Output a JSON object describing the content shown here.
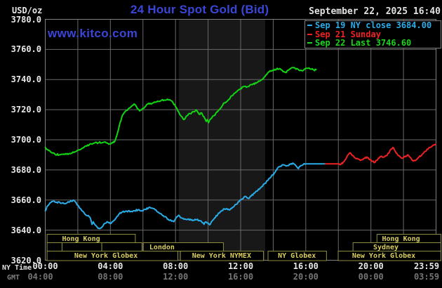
{
  "header": {
    "title": "24 Hour Spot Gold (Bid)",
    "datetime": "September 22, 2025 16:40",
    "watermark": "www.kitco.com",
    "unit_label": "USD/oz"
  },
  "legend": {
    "items": [
      {
        "label": "Sep 19 NY close 3684.00",
        "color": "#2aace8"
      },
      {
        "label": "Sep 21 Sunday",
        "color": "#ee2222"
      },
      {
        "label": "Sep 22 Last 3746.60",
        "color": "#1ed41e"
      }
    ]
  },
  "axes": {
    "y_ticks": [
      "3780.0",
      "3760.0",
      "3740.0",
      "3720.0",
      "3700.0",
      "3680.0",
      "3660.0",
      "3640.0",
      "3620.0"
    ],
    "tick_hours": [
      0,
      4,
      8,
      12,
      16,
      20,
      23.983
    ],
    "x_rows": [
      {
        "name": "NY Time",
        "ticks": [
          "00:00",
          "04:00",
          "08:00",
          "12:00",
          "16:00",
          "20:00",
          "23:59"
        ]
      },
      {
        "name": "GMT",
        "ticks": [
          "04:00",
          "08:00",
          "12:00",
          "16:00",
          "20:00",
          "00:00",
          "03:59"
        ]
      }
    ]
  },
  "sessions": {
    "rows": [
      {
        "boxes": [
          {
            "h1": 0.09,
            "h2": 5.51,
            "label": "Hong Kong",
            "cx_h": 2.2
          },
          {
            "h1": 20.35,
            "h2": 24.28,
            "label": "Hong Kong",
            "cx_h": 21.85
          }
        ]
      },
      {
        "boxes": [
          {
            "h1": 0.09,
            "h2": 1.01,
            "label": ""
          },
          {
            "h1": 1.01,
            "h2": 3.45,
            "label": ""
          },
          {
            "h1": 3.45,
            "h2": 5.92,
            "label": ""
          },
          {
            "h1": 6.0,
            "h2": 10.92,
            "label": "London",
            "cx_h": 7.17
          },
          {
            "h1": 18.88,
            "h2": 24.28,
            "label": "Sydney",
            "cx_h": 20.92
          }
        ]
      },
      {
        "boxes": [
          {
            "h1": 0.09,
            "h2": 8.12,
            "label": "New York Globex",
            "cx_h": 3.73
          },
          {
            "h1": 8.28,
            "h2": 13.38,
            "label": "New York NYMEX"
          },
          {
            "h1": 13.66,
            "h2": 17.25,
            "label": "NY Globex"
          },
          {
            "h1": 17.97,
            "h2": 24.28,
            "label": "New York Globex",
            "cx_h": 20.79
          }
        ]
      }
    ]
  },
  "colors": {
    "background": "#000000",
    "grid": "#696969",
    "border": "#7f7f7f",
    "band": "#181818",
    "session_border": "#8f8c42",
    "session_text": "#d8ce60",
    "axis_text": "#e8e8e8",
    "axis_text_dim": "#757575",
    "title_blue": "#3946d8",
    "date_text": "#e2e2e2"
  },
  "chart_data": {
    "type": "line",
    "title": "24 Hour Spot Gold (Bid)",
    "x_unit": "hours_ny_time",
    "xlim": [
      0,
      24
    ],
    "ylim": [
      3620,
      3780
    ],
    "y_gridstep": 20,
    "x_gridstep_hours": 2,
    "highlight_band_hours": [
      8.2,
      13.51
    ],
    "ny_close": 3684.0,
    "last": 3746.6,
    "series": [
      {
        "name": "Sep 19 NY close",
        "color": "#2aace8",
        "points": [
          [
            0,
            3652.8
          ],
          [
            0.1,
            3655.5
          ],
          [
            0.3,
            3658.2
          ],
          [
            0.45,
            3659
          ],
          [
            0.65,
            3658.5
          ],
          [
            0.9,
            3658.3
          ],
          [
            1.2,
            3657.6
          ],
          [
            1.45,
            3658.6
          ],
          [
            1.7,
            3659.8
          ],
          [
            1.85,
            3658.8
          ],
          [
            2,
            3656.5
          ],
          [
            2.2,
            3653.8
          ],
          [
            2.4,
            3651.3
          ],
          [
            2.6,
            3649.5
          ],
          [
            2.75,
            3648.5
          ],
          [
            2.87,
            3643.8
          ],
          [
            2.95,
            3645.5
          ],
          [
            3.1,
            3643.2
          ],
          [
            3.3,
            3641.2
          ],
          [
            3.45,
            3641.6
          ],
          [
            3.6,
            3644.1
          ],
          [
            3.8,
            3645.6
          ],
          [
            4,
            3644.3
          ],
          [
            4.2,
            3646.3
          ],
          [
            4.35,
            3648.1
          ],
          [
            4.55,
            3650.9
          ],
          [
            4.75,
            3652.2
          ],
          [
            5,
            3652.6
          ],
          [
            5.25,
            3652.4
          ],
          [
            5.5,
            3652.9
          ],
          [
            5.75,
            3653.7
          ],
          [
            5.95,
            3652.9
          ],
          [
            6.15,
            3653.8
          ],
          [
            6.35,
            3654.9
          ],
          [
            6.55,
            3654.6
          ],
          [
            6.75,
            3653.5
          ],
          [
            6.95,
            3651.9
          ],
          [
            7.15,
            3650.5
          ],
          [
            7.35,
            3648.9
          ],
          [
            7.55,
            3647.3
          ],
          [
            7.75,
            3646
          ],
          [
            7.9,
            3645.6
          ],
          [
            8.1,
            3648.9
          ],
          [
            8.2,
            3649.9
          ],
          [
            8.35,
            3648.1
          ],
          [
            8.5,
            3647.3
          ],
          [
            8.7,
            3646.9
          ],
          [
            8.9,
            3647.3
          ],
          [
            9.1,
            3646.6
          ],
          [
            9.3,
            3646.9
          ],
          [
            9.5,
            3646.2
          ],
          [
            9.65,
            3644.9
          ],
          [
            9.75,
            3643.9
          ],
          [
            9.85,
            3645.5
          ],
          [
            10,
            3644.7
          ],
          [
            10.1,
            3643.5
          ],
          [
            10.25,
            3646.1
          ],
          [
            10.4,
            3648.1
          ],
          [
            10.6,
            3650.5
          ],
          [
            10.8,
            3652.6
          ],
          [
            11,
            3654.1
          ],
          [
            11.15,
            3654.3
          ],
          [
            11.3,
            3653.4
          ],
          [
            11.5,
            3655.1
          ],
          [
            11.7,
            3657.1
          ],
          [
            11.9,
            3658.9
          ],
          [
            12.05,
            3660.4
          ],
          [
            12.2,
            3661.8
          ],
          [
            12.35,
            3662.1
          ],
          [
            12.5,
            3661
          ],
          [
            12.65,
            3662.7
          ],
          [
            12.85,
            3664.5
          ],
          [
            13.05,
            3666.3
          ],
          [
            13.25,
            3668.4
          ],
          [
            13.45,
            3670.7
          ],
          [
            13.65,
            3672.8
          ],
          [
            13.85,
            3675
          ],
          [
            14.05,
            3677.7
          ],
          [
            14.25,
            3680.9
          ],
          [
            14.45,
            3682.5
          ],
          [
            14.65,
            3683.3
          ],
          [
            14.85,
            3682.9
          ],
          [
            15.05,
            3683.7
          ],
          [
            15.2,
            3684.5
          ],
          [
            15.4,
            3682.7
          ],
          [
            15.55,
            3680.9
          ],
          [
            15.7,
            3682.9
          ],
          [
            15.85,
            3683.7
          ],
          [
            16,
            3684
          ],
          [
            17.2,
            3684
          ]
        ]
      },
      {
        "name": "Sep 21 Sunday",
        "color": "#ee2222",
        "points": [
          [
            17.2,
            3684
          ],
          [
            18.05,
            3684
          ],
          [
            18.15,
            3683.6
          ],
          [
            18.3,
            3685.2
          ],
          [
            18.5,
            3688.2
          ],
          [
            18.65,
            3690.6
          ],
          [
            18.73,
            3691.3
          ],
          [
            18.85,
            3689.6
          ],
          [
            19,
            3688.1
          ],
          [
            19.2,
            3687.3
          ],
          [
            19.4,
            3686.6
          ],
          [
            19.6,
            3687.7
          ],
          [
            19.75,
            3688.6
          ],
          [
            19.9,
            3686.9
          ],
          [
            20.05,
            3685.7
          ],
          [
            20.25,
            3685
          ],
          [
            20.45,
            3687.7
          ],
          [
            20.6,
            3688.9
          ],
          [
            20.8,
            3688.5
          ],
          [
            21,
            3689.8
          ],
          [
            21.2,
            3693.4
          ],
          [
            21.35,
            3694.9
          ],
          [
            21.5,
            3692.3
          ],
          [
            21.7,
            3689.4
          ],
          [
            21.9,
            3687.8
          ],
          [
            22.1,
            3688.7
          ],
          [
            22.3,
            3689.9
          ],
          [
            22.45,
            3688
          ],
          [
            22.6,
            3685.9
          ],
          [
            22.75,
            3686.4
          ],
          [
            22.95,
            3688.5
          ],
          [
            23.15,
            3690.4
          ],
          [
            23.35,
            3692.4
          ],
          [
            23.6,
            3694.8
          ],
          [
            23.8,
            3696.2
          ],
          [
            23.98,
            3697
          ]
        ]
      },
      {
        "name": "Sep 22",
        "color": "#12d412",
        "points": [
          [
            0,
            3695
          ],
          [
            0.15,
            3693.4
          ],
          [
            0.35,
            3691.7
          ],
          [
            0.6,
            3690.4
          ],
          [
            0.9,
            3690
          ],
          [
            1.2,
            3690.3
          ],
          [
            1.5,
            3690.9
          ],
          [
            1.8,
            3691.9
          ],
          [
            2.1,
            3693.4
          ],
          [
            2.4,
            3695.3
          ],
          [
            2.7,
            3696.7
          ],
          [
            3,
            3697.7
          ],
          [
            3.3,
            3698.2
          ],
          [
            3.6,
            3698.5
          ],
          [
            3.8,
            3697.9
          ],
          [
            4,
            3697.2
          ],
          [
            4.15,
            3698
          ],
          [
            4.28,
            3699.2
          ],
          [
            4.4,
            3703
          ],
          [
            4.55,
            3709.5
          ],
          [
            4.7,
            3715
          ],
          [
            4.85,
            3718
          ],
          [
            5,
            3719.6
          ],
          [
            5.15,
            3721
          ],
          [
            5.3,
            3722.3
          ],
          [
            5.45,
            3723.8
          ],
          [
            5.6,
            3722
          ],
          [
            5.8,
            3719.2
          ],
          [
            6,
            3720.7
          ],
          [
            6.2,
            3722.9
          ],
          [
            6.35,
            3724.3
          ],
          [
            6.5,
            3723.7
          ],
          [
            6.7,
            3725.1
          ],
          [
            6.9,
            3725.7
          ],
          [
            7.1,
            3726
          ],
          [
            7.3,
            3726.4
          ],
          [
            7.5,
            3727
          ],
          [
            7.7,
            3726.1
          ],
          [
            7.85,
            3724.6
          ],
          [
            8.05,
            3721.4
          ],
          [
            8.25,
            3717
          ],
          [
            8.45,
            3714.2
          ],
          [
            8.55,
            3713.6
          ],
          [
            8.7,
            3715.9
          ],
          [
            8.9,
            3717.4
          ],
          [
            9.1,
            3718.6
          ],
          [
            9.3,
            3719.6
          ],
          [
            9.45,
            3717
          ],
          [
            9.6,
            3717.9
          ],
          [
            9.8,
            3714.2
          ],
          [
            9.88,
            3712.2
          ],
          [
            9.95,
            3713.4
          ],
          [
            10.03,
            3711.4
          ],
          [
            10.15,
            3713.8
          ],
          [
            10.3,
            3715.8
          ],
          [
            10.42,
            3716.2
          ],
          [
            10.52,
            3718.2
          ],
          [
            10.65,
            3719.8
          ],
          [
            10.72,
            3720.2
          ],
          [
            10.85,
            3722.3
          ],
          [
            11,
            3724.6
          ],
          [
            11.1,
            3725
          ],
          [
            11.22,
            3726.2
          ],
          [
            11.32,
            3727
          ],
          [
            11.45,
            3729.2
          ],
          [
            11.55,
            3730
          ],
          [
            11.68,
            3731.4
          ],
          [
            11.8,
            3732.6
          ],
          [
            12,
            3734.1
          ],
          [
            12.2,
            3735.4
          ],
          [
            12.35,
            3734.9
          ],
          [
            12.55,
            3736.1
          ],
          [
            12.75,
            3736.9
          ],
          [
            12.95,
            3737.6
          ],
          [
            13.15,
            3738.9
          ],
          [
            13.4,
            3740.9
          ],
          [
            13.6,
            3743.4
          ],
          [
            13.75,
            3745.2
          ],
          [
            13.9,
            3745.9
          ],
          [
            14.05,
            3746.2
          ],
          [
            14.2,
            3746.9
          ],
          [
            14.4,
            3747.3
          ],
          [
            14.6,
            3745.3
          ],
          [
            14.75,
            3744.7
          ],
          [
            14.95,
            3746.4
          ],
          [
            15.15,
            3747.9
          ],
          [
            15.35,
            3747.4
          ],
          [
            15.55,
            3746.6
          ],
          [
            15.75,
            3745.9
          ],
          [
            15.95,
            3747.1
          ],
          [
            16.15,
            3747.6
          ],
          [
            16.35,
            3746.9
          ],
          [
            16.5,
            3746.3
          ],
          [
            16.63,
            3746.6
          ]
        ]
      }
    ]
  }
}
